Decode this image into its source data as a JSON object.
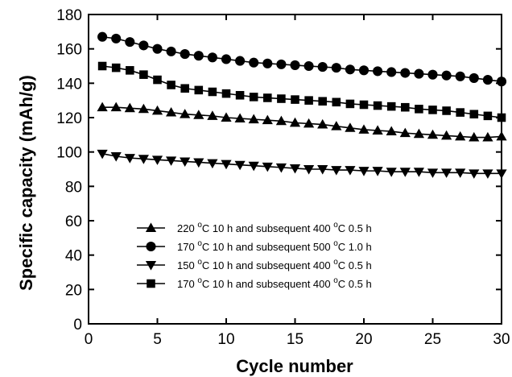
{
  "chart_data": {
    "type": "line",
    "title": "",
    "xlabel": "Cycle number",
    "ylabel": "Specific capacity (mAh/g)",
    "xlim": [
      0,
      30
    ],
    "ylim": [
      0,
      180
    ],
    "xticks": [
      0,
      5,
      10,
      15,
      20,
      25,
      30
    ],
    "yticks": [
      0,
      20,
      40,
      60,
      80,
      100,
      120,
      140,
      160,
      180
    ],
    "grid": false,
    "legend_position": "bottom-center",
    "x": [
      1,
      2,
      3,
      4,
      5,
      6,
      7,
      8,
      9,
      10,
      11,
      12,
      13,
      14,
      15,
      16,
      17,
      18,
      19,
      20,
      21,
      22,
      23,
      24,
      25,
      26,
      27,
      28,
      29,
      30
    ],
    "series": [
      {
        "name": "220 °C 10 h and subsequent 400 °C 0.5 h",
        "legend": {
          "t1": "220 ",
          "s1": "o",
          "t2": "C 10 h and subsequent 400 ",
          "s2": "o",
          "t3": "C 0.5 h"
        },
        "marker": "triangle-up",
        "values": [
          126,
          126,
          125.5,
          125,
          124,
          123,
          122,
          121.5,
          121,
          120,
          119.5,
          119,
          118.5,
          118,
          117,
          116.5,
          116,
          115,
          114,
          113,
          112.5,
          112,
          111,
          110.5,
          110,
          109.5,
          109,
          108.5,
          108.5,
          109
        ]
      },
      {
        "name": "170 °C 10 h  and subsequent 500 °C 1.0 h",
        "legend": {
          "t1": "170 ",
          "s1": "o",
          "t2": "C 10 h  and subsequent 500 ",
          "s2": "o",
          "t3": "C 1.0 h"
        },
        "marker": "circle",
        "values": [
          167,
          166,
          164,
          162,
          160,
          158.5,
          157,
          156,
          155,
          154,
          153,
          152,
          151.5,
          151,
          150.5,
          150,
          149.5,
          149,
          148,
          147.5,
          147,
          146.5,
          146,
          145.5,
          145,
          144.5,
          144,
          143,
          142,
          141
        ]
      },
      {
        "name": "150 °C 10 h and subsequent 400 °C 0.5 h",
        "legend": {
          "t1": "150 ",
          "s1": "o",
          "t2": "C 10 h and subsequent 400 ",
          "s2": "o",
          "t3": "C 0.5 h"
        },
        "marker": "triangle-down",
        "values": [
          99,
          97.5,
          96.5,
          96,
          95.5,
          95,
          94.5,
          94,
          93.5,
          93,
          92.5,
          92,
          91.5,
          91,
          90.5,
          90,
          90,
          89.5,
          89.5,
          89,
          89,
          88.5,
          88.5,
          88.5,
          88,
          88,
          88,
          87.5,
          87.5,
          87.5
        ]
      },
      {
        "name": "170 °C 10 h and subsequent 400 °C 0.5 h",
        "legend": {
          "t1": "170 ",
          "s1": "o",
          "t2": "C 10 h and subsequent 400 ",
          "s2": "o",
          "t3": "C 0.5 h"
        },
        "marker": "square",
        "values": [
          150,
          149,
          147.5,
          145,
          142,
          139,
          137,
          136,
          135,
          134,
          133,
          132,
          131.5,
          131,
          130.5,
          130,
          129.5,
          129,
          128,
          127.5,
          127,
          126.5,
          126,
          125,
          124.5,
          124,
          123,
          122,
          121,
          120
        ]
      }
    ]
  }
}
